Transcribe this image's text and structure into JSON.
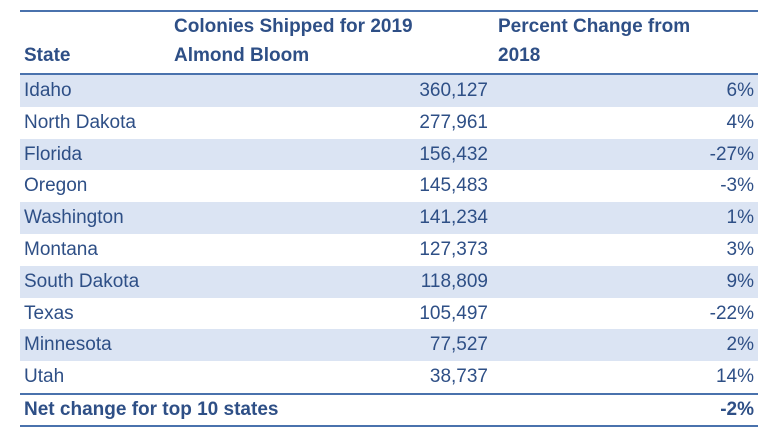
{
  "table": {
    "headers": {
      "state": "State",
      "colonies_line1": "Colonies Shipped for 2019",
      "colonies_line2": "Almond Bloom",
      "pct_line1": "Percent Change from",
      "pct_line2": "2018"
    },
    "rows": [
      {
        "state": "Idaho",
        "colonies": "360,127",
        "pct": "6%"
      },
      {
        "state": "North Dakota",
        "colonies": "277,961",
        "pct": "4%"
      },
      {
        "state": "Florida",
        "colonies": "156,432",
        "pct": "-27%"
      },
      {
        "state": "Oregon",
        "colonies": "145,483",
        "pct": "-3%"
      },
      {
        "state": "Washington",
        "colonies": "141,234",
        "pct": "1%"
      },
      {
        "state": "Montana",
        "colonies": "127,373",
        "pct": "3%"
      },
      {
        "state": "South Dakota",
        "colonies": "118,809",
        "pct": "9%"
      },
      {
        "state": "Texas",
        "colonies": "105,497",
        "pct": "-22%"
      },
      {
        "state": "Minnesota",
        "colonies": "77,527",
        "pct": "2%"
      },
      {
        "state": "Utah",
        "colonies": "38,737",
        "pct": "14%"
      }
    ],
    "footer": {
      "label": "Net change for top 10 states",
      "pct": "-2%"
    }
  },
  "colors": {
    "text": "#2e4f86",
    "rule": "#4a72ad",
    "band": "#dbe4f3"
  }
}
